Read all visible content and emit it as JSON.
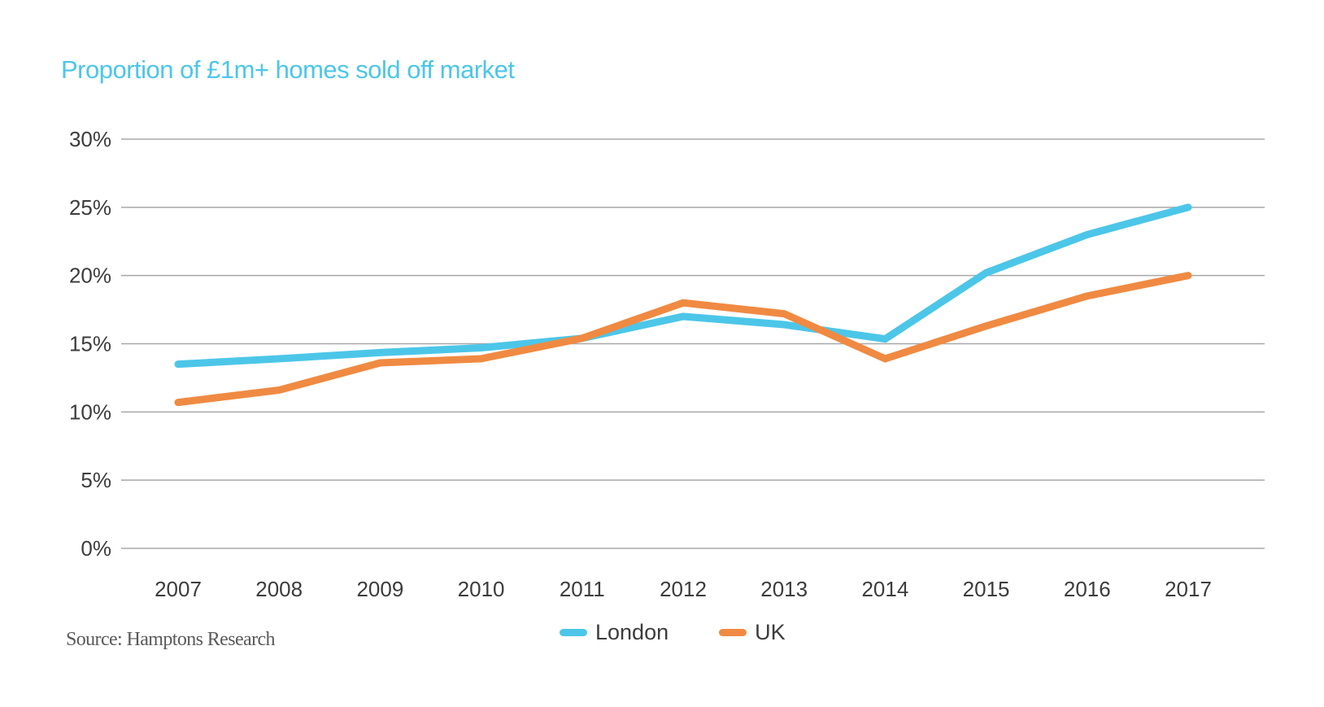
{
  "chart_data": {
    "type": "line",
    "title": "Proportion of £1m+ homes sold off market",
    "xlabel": "",
    "ylabel": "",
    "categories": [
      "2007",
      "2008",
      "2009",
      "2010",
      "2011",
      "2012",
      "2013",
      "2014",
      "2015",
      "2016",
      "2017"
    ],
    "series": [
      {
        "name": "London",
        "color": "#4cc6e8",
        "values": [
          13.5,
          13.9,
          14.35,
          14.7,
          15.4,
          17.0,
          16.4,
          15.35,
          20.2,
          23.0,
          25.0
        ]
      },
      {
        "name": "UK",
        "color": "#f08a42",
        "values": [
          10.7,
          11.6,
          13.6,
          13.9,
          15.4,
          18.0,
          17.2,
          13.9,
          16.3,
          18.5,
          20.0
        ]
      }
    ],
    "ylim": [
      0,
      30
    ],
    "yticks": [
      0,
      5,
      10,
      15,
      20,
      25,
      30
    ],
    "ytick_labels": [
      "0%",
      "5%",
      "10%",
      "15%",
      "20%",
      "25%",
      "30%"
    ],
    "grid": true,
    "legend_position": "bottom-center",
    "source": "Source: Hamptons Research"
  }
}
